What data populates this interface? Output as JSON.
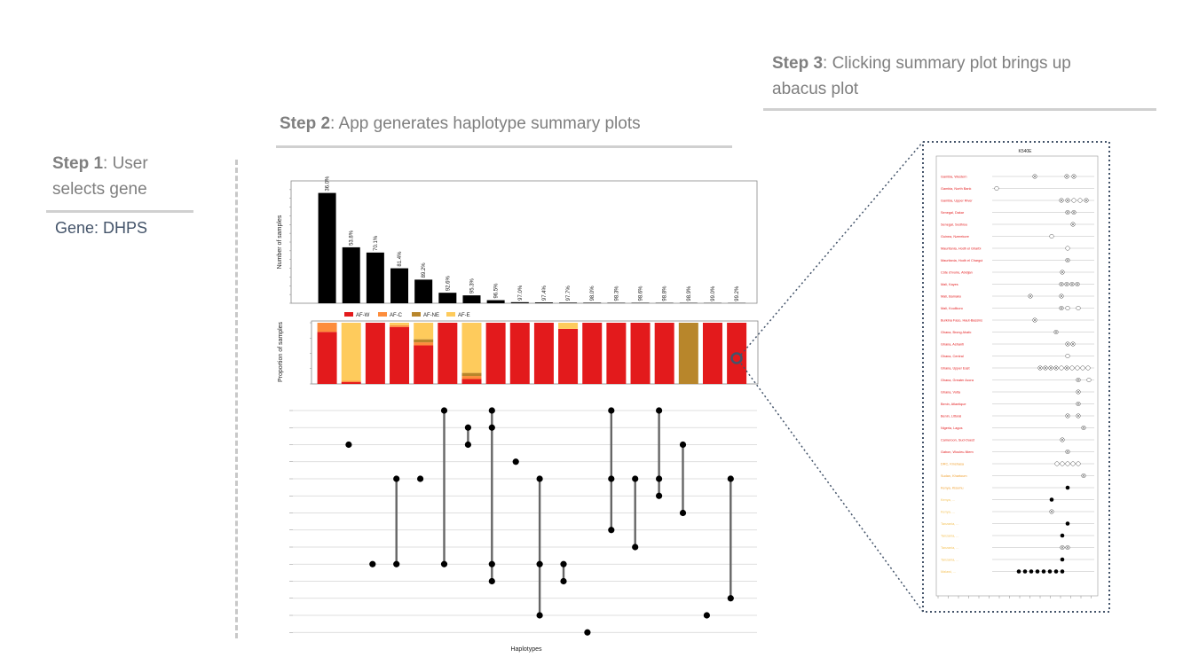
{
  "steps": {
    "step1": {
      "label": "Step 1",
      "text": ": User",
      "text2": "selects gene"
    },
    "gene": "Gene: DHPS",
    "step2": {
      "label": "Step 2",
      "text": ": App generates haplotype summary plots"
    },
    "step3": {
      "label": "Step 3",
      "text": ": Clicking summary plot brings up",
      "text2": "abacus plot"
    }
  },
  "colors": {
    "AF-W": "#e31a1c",
    "AF-C": "#fd8d3c",
    "AF-NE": "#b8862b",
    "AF-E": "#fecb5c",
    "bar": "#000000",
    "accent": "#44546a"
  },
  "chart_data": [
    {
      "type": "bar",
      "title": "",
      "ylabel": "Number of samples",
      "xlabel": "",
      "ylim": [
        0,
        1400
      ],
      "yticks": [
        0,
        100,
        200,
        300,
        400,
        500,
        600,
        700,
        800,
        900,
        1000,
        1100,
        1200,
        1300
      ],
      "values": [
        1262,
        640,
        580,
        400,
        270,
        120,
        90,
        35,
        12,
        9,
        7,
        6,
        5,
        5,
        4,
        4,
        3,
        3
      ],
      "labels": [
        "36.0%",
        "53.8%",
        "70.1%",
        "81.4%",
        "89.2%",
        "92.6%",
        "95.3%",
        "96.5%",
        "97.0%",
        "97.4%",
        "97.7%",
        "98.0%",
        "98.3%",
        "98.6%",
        "98.8%",
        "98.9%",
        "99.0%",
        "99.2%"
      ]
    },
    {
      "type": "bar",
      "stacked": true,
      "ylabel": "Proportion of samples",
      "ylim": [
        0,
        1
      ],
      "legend": [
        "AF-W",
        "AF-C",
        "AF-NE",
        "AF-E"
      ],
      "series": [
        {
          "name": "AF-W",
          "values": [
            0.85,
            0.03,
            1.0,
            0.93,
            0.63,
            1.0,
            0.08,
            1.0,
            1.0,
            1.0,
            0.9,
            1.0,
            1.0,
            1.0,
            1.0,
            0.0,
            1.0,
            1.0
          ]
        },
        {
          "name": "AF-C",
          "values": [
            0.15,
            0.02,
            0.0,
            0.03,
            0.05,
            0.0,
            0.05,
            0.0,
            0.0,
            0.0,
            0.0,
            0.0,
            0.0,
            0.0,
            0.0,
            0.0,
            0.0,
            0.0
          ]
        },
        {
          "name": "AF-NE",
          "values": [
            0.0,
            0.0,
            0.0,
            0.0,
            0.05,
            0.0,
            0.05,
            0.0,
            0.0,
            0.0,
            0.0,
            0.0,
            0.0,
            0.0,
            0.0,
            1.0,
            0.0,
            0.0
          ]
        },
        {
          "name": "AF-E",
          "values": [
            0.0,
            0.95,
            0.0,
            0.04,
            0.27,
            0.0,
            0.82,
            0.0,
            0.0,
            0.0,
            0.1,
            0.0,
            0.0,
            0.0,
            0.0,
            0.0,
            0.0,
            0.0
          ]
        }
      ]
    },
    {
      "type": "scatter",
      "xlabel": "Haplotypes",
      "rows": 14,
      "columns": [
        {
          "col": 1,
          "rows": [
            2
          ]
        },
        {
          "col": 2,
          "rows": [
            9
          ]
        },
        {
          "col": 3,
          "rows": [
            4,
            9
          ]
        },
        {
          "col": 4,
          "rows": [
            4
          ]
        },
        {
          "col": 5,
          "rows": [
            0,
            9
          ]
        },
        {
          "col": 6,
          "rows": [
            1,
            2
          ]
        },
        {
          "col": 7,
          "rows": [
            0,
            1,
            9,
            10
          ]
        },
        {
          "col": 8,
          "rows": [
            3
          ]
        },
        {
          "col": 9,
          "rows": [
            4,
            9,
            12
          ]
        },
        {
          "col": 10,
          "rows": [
            9,
            10
          ]
        },
        {
          "col": 11,
          "rows": [
            13
          ]
        },
        {
          "col": 12,
          "rows": [
            0,
            4,
            7
          ]
        },
        {
          "col": 13,
          "rows": [
            4,
            8
          ]
        },
        {
          "col": 14,
          "rows": [
            0,
            4,
            5
          ]
        },
        {
          "col": 15,
          "rows": [
            2,
            6
          ]
        },
        {
          "col": 16,
          "rows": [
            12
          ]
        },
        {
          "col": 17,
          "rows": [
            4,
            11
          ]
        }
      ]
    },
    {
      "type": "scatter",
      "title": "K540E",
      "rows": 34,
      "regions": [
        "Gambia, Western",
        "Gambia, North Bank",
        "Gambia, Upper River",
        "Senegal, Dakar",
        "Senegal, Sedhiou",
        "Guinea, Nzerekore",
        "Mauritania, Hodh el Gharbi",
        "Mauritania, Hodh el Chargui",
        "Côte d'Ivoire, Abidjan",
        "Mali, Kayes",
        "Mali, Bamako",
        "Mali, Koulikoro",
        "Burkina Faso, Haut-Bassins",
        "Ghana, Brong Ahafo",
        "Ghana, Ashanti",
        "Ghana, Central",
        "Ghana, Upper East",
        "Ghana, Greater Accra",
        "Ghana, Volta",
        "Benin, Atlantique",
        "Benin, Littoral",
        "Nigeria, Lagos",
        "Cameroon, Sud-Ouest",
        "Gabon, Wouleu-Ntem",
        "DRC, Kinshasa",
        "Sudan, Khartoum",
        "Kenya, Kisumu",
        "Kenya, ...",
        "Kenya, ...",
        "Tanzania, ...",
        "Tanzania, ...",
        "Tanzania, ...",
        "Tanzania, ...",
        "Malawi, ..."
      ]
    }
  ]
}
